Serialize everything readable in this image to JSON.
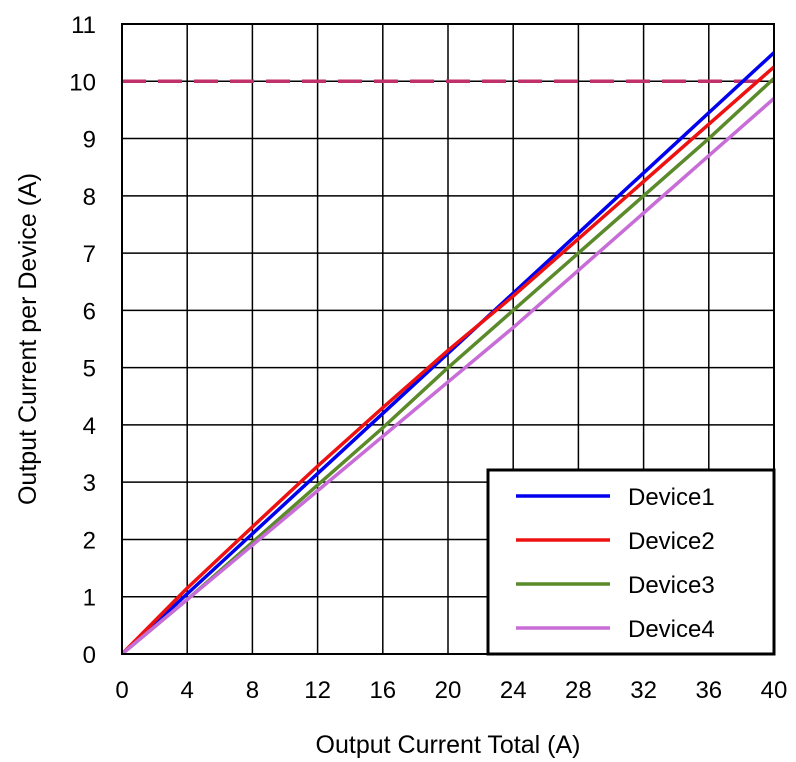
{
  "chart_data": {
    "type": "line",
    "title": "",
    "xlabel": "Output Current Total (A)",
    "ylabel": "Output Current per Device (A)",
    "xlim": [
      0,
      40
    ],
    "ylim": [
      0,
      11
    ],
    "xticks": [
      "0",
      "4",
      "8",
      "12",
      "16",
      "20",
      "24",
      "28",
      "32",
      "36",
      "40"
    ],
    "yticks": [
      "0",
      "1",
      "2",
      "3",
      "4",
      "5",
      "6",
      "7",
      "8",
      "9",
      "10",
      "11"
    ],
    "grid": true,
    "legend_position": "bottom-right",
    "series": [
      {
        "name": "Device1",
        "color": "#0000ee",
        "x": [
          0,
          4,
          8,
          12,
          16,
          20,
          24,
          28,
          32,
          36,
          40
        ],
        "y": [
          0,
          1.05,
          2.1,
          3.15,
          4.2,
          5.25,
          6.3,
          7.35,
          8.4,
          9.45,
          10.5
        ]
      },
      {
        "name": "Device2",
        "color": "#ee1111",
        "x": [
          0,
          4,
          8,
          12,
          16,
          20,
          24,
          28,
          32,
          36,
          40
        ],
        "y": [
          0,
          1.15,
          2.22,
          3.28,
          4.3,
          5.3,
          6.25,
          7.25,
          8.25,
          9.25,
          10.25
        ]
      },
      {
        "name": "Device3",
        "color": "#5a8a2a",
        "x": [
          0,
          4,
          8,
          12,
          16,
          20,
          24,
          28,
          32,
          36,
          40
        ],
        "y": [
          0,
          0.95,
          1.95,
          2.95,
          3.95,
          5.0,
          6.0,
          7.0,
          8.0,
          9.0,
          10.05
        ]
      },
      {
        "name": "Device4",
        "color": "#c86dd7",
        "x": [
          0,
          4,
          8,
          12,
          16,
          20,
          24,
          28,
          32,
          36,
          40
        ],
        "y": [
          0,
          0.95,
          1.9,
          2.85,
          3.8,
          4.75,
          5.7,
          6.7,
          7.7,
          8.7,
          9.7
        ]
      }
    ],
    "reference_line": {
      "y": 10,
      "style": "dashed",
      "color": "#c0306a"
    }
  }
}
